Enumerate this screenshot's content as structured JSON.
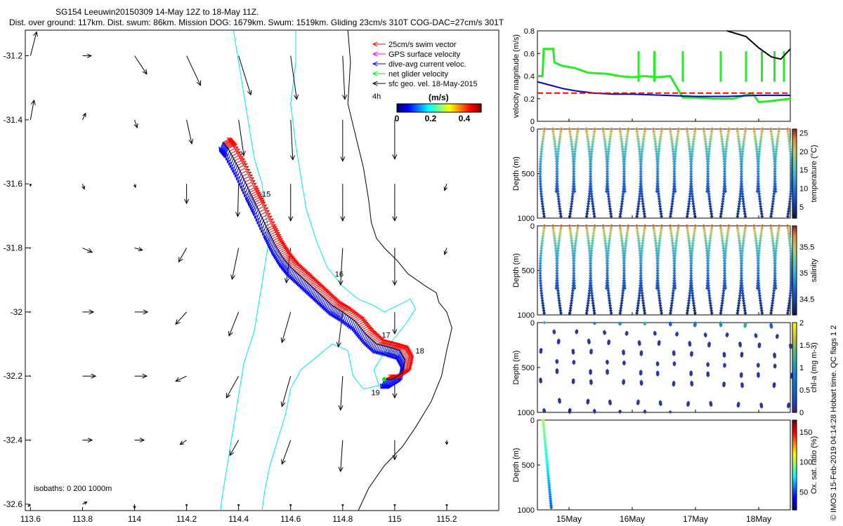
{
  "title_line1": "SG154 Leeuwin20150309 14-May 12Z to 18-May 11Z.",
  "title_line2": "Dist. over ground: 117km. Dist. swum: 86km. Mission DOG: 1679km. Swum: 1519km. Gliding 23cm/s 310T COG-DAC=27cm/s 301T",
  "copyright": "© IMOS 15-Feb-2019 04:14:28 Hobart time. QC flags 1  2",
  "colors": {
    "swim": "#ff0000",
    "gps": "#ff00ff",
    "dac": "#0000ff",
    "net": "#00ee00",
    "geo": "#000000",
    "isobath": "#00e5ee",
    "coast": "#000000",
    "dive_mag": "#0000cc",
    "ref_line": "#ff0000",
    "green_mag": "#22ee22"
  },
  "chart_data": [
    {
      "type": "map",
      "title": "Glider track with velocity vectors",
      "xlim": [
        113.58,
        115.4
      ],
      "ylim": [
        -32.62,
        -31.12
      ],
      "xticks": [
        "113.6",
        "113.8",
        "114",
        "114.2",
        "114.4",
        "114.6",
        "114.8",
        "115",
        "115.2"
      ],
      "yticks": [
        "-31.2",
        "-31.4",
        "-31.6",
        "-31.8",
        "-32",
        "-32.2",
        "-32.4",
        "-32.6"
      ],
      "legend": [
        {
          "label": "25cm/s swim vector",
          "color": "#ff0000"
        },
        {
          "label": "GPS surface velocity",
          "color": "#ff00ff"
        },
        {
          "label": "dive-avg current veloc.",
          "color": "#0000ff"
        },
        {
          "label": "net glider velocity",
          "color": "#00ee00"
        },
        {
          "label": "sfc geo. vel. 18-May-2015",
          "color": "#000000"
        }
      ],
      "scale_label": "4h",
      "colorbar": {
        "title": "(m/s)",
        "ticks": [
          "0",
          "0.2",
          "0.4"
        ],
        "range": [
          0,
          0.5
        ]
      },
      "day_labels": [
        {
          "day": "15",
          "lon": 114.49,
          "lat": -31.64
        },
        {
          "day": "16",
          "lon": 114.77,
          "lat": -31.89
        },
        {
          "day": "17",
          "lon": 114.95,
          "lat": -32.08
        },
        {
          "day": "18",
          "lon": 115.08,
          "lat": -32.13
        },
        {
          "day": "19",
          "lon": 114.91,
          "lat": -32.26
        }
      ],
      "isobath_note": "isobaths: 0   200  1000m",
      "track": [
        [
          114.34,
          -31.47
        ],
        [
          114.36,
          -31.49
        ],
        [
          114.4,
          -31.55
        ],
        [
          114.44,
          -31.62
        ],
        [
          114.47,
          -31.67
        ],
        [
          114.51,
          -31.74
        ],
        [
          114.54,
          -31.79
        ],
        [
          114.57,
          -31.83
        ],
        [
          114.6,
          -31.86
        ],
        [
          114.64,
          -31.89
        ],
        [
          114.68,
          -31.92
        ],
        [
          114.72,
          -31.95
        ],
        [
          114.76,
          -31.98
        ],
        [
          114.8,
          -32.0
        ],
        [
          114.85,
          -32.03
        ],
        [
          114.89,
          -32.07
        ],
        [
          114.93,
          -32.1
        ],
        [
          114.98,
          -32.11
        ],
        [
          115.02,
          -32.12
        ],
        [
          115.04,
          -32.15
        ],
        [
          115.03,
          -32.19
        ],
        [
          114.99,
          -32.21
        ],
        [
          114.96,
          -32.21
        ]
      ],
      "geo_vectors": [
        [
          113.6,
          -31.2,
          0.14,
          0.55
        ],
        [
          113.8,
          -31.2,
          0.2,
          0.0
        ],
        [
          114.0,
          -31.2,
          0.28,
          -0.42
        ],
        [
          114.2,
          -31.2,
          0.32,
          -0.68
        ],
        [
          114.4,
          -31.2,
          0.28,
          -0.9
        ],
        [
          114.6,
          -31.2,
          0.14,
          -1.0
        ],
        [
          114.8,
          -31.2,
          0.05,
          -1.0
        ],
        [
          113.6,
          -31.4,
          0.08,
          0.45
        ],
        [
          113.8,
          -31.4,
          0.07,
          0.15
        ],
        [
          114.0,
          -31.4,
          0.06,
          -0.18
        ],
        [
          114.2,
          -31.4,
          0.12,
          -0.55
        ],
        [
          114.4,
          -31.4,
          0.12,
          -0.82
        ],
        [
          114.6,
          -31.4,
          0.05,
          -0.92
        ],
        [
          114.8,
          -31.4,
          0.0,
          -0.95
        ],
        [
          115.0,
          -31.4,
          0.0,
          -0.9
        ],
        [
          113.6,
          -31.6,
          0.0,
          -0.05
        ],
        [
          113.8,
          -31.6,
          0.04,
          -0.12
        ],
        [
          114.0,
          -31.6,
          0.02,
          -0.08
        ],
        [
          114.2,
          -31.6,
          0.0,
          -0.45
        ],
        [
          114.4,
          -31.6,
          -0.02,
          -0.75
        ],
        [
          114.6,
          -31.6,
          0.0,
          -0.85
        ],
        [
          114.8,
          -31.6,
          0.0,
          -0.85
        ],
        [
          115.0,
          -31.6,
          0.0,
          -0.85
        ],
        [
          115.2,
          -31.6,
          -0.05,
          -0.15
        ],
        [
          113.6,
          -31.8,
          0.0,
          0.0
        ],
        [
          113.8,
          -31.8,
          0.22,
          -0.1
        ],
        [
          114.0,
          -31.8,
          0.18,
          -0.05
        ],
        [
          114.2,
          -31.8,
          -0.18,
          -0.32
        ],
        [
          114.4,
          -31.8,
          -0.15,
          -0.72
        ],
        [
          114.6,
          -31.8,
          -0.1,
          -0.8
        ],
        [
          114.8,
          -31.8,
          -0.05,
          -0.85
        ],
        [
          115.0,
          -31.8,
          0.0,
          -0.85
        ],
        [
          115.2,
          -31.8,
          -0.05,
          -0.15
        ],
        [
          113.6,
          -32.0,
          0.0,
          0.0
        ],
        [
          113.8,
          -32.0,
          0.25,
          0.0
        ],
        [
          114.0,
          -32.0,
          0.3,
          0.0
        ],
        [
          114.2,
          -32.0,
          -0.25,
          -0.28
        ],
        [
          114.4,
          -32.0,
          -0.22,
          -0.55
        ],
        [
          114.6,
          -32.0,
          -0.2,
          -0.7
        ],
        [
          114.8,
          -32.0,
          -0.1,
          -0.8
        ],
        [
          115.0,
          -32.0,
          0.0,
          -0.5
        ],
        [
          113.6,
          -32.2,
          0.0,
          0.0
        ],
        [
          113.8,
          -32.2,
          0.3,
          0.0
        ],
        [
          114.0,
          -32.2,
          0.28,
          0.0
        ],
        [
          114.2,
          -32.2,
          -0.25,
          -0.12
        ],
        [
          114.4,
          -32.2,
          -0.28,
          -0.5
        ],
        [
          114.6,
          -32.2,
          -0.2,
          -0.7
        ],
        [
          114.8,
          -32.2,
          -0.05,
          -0.78
        ],
        [
          115.0,
          -32.2,
          0.0,
          -0.5
        ],
        [
          113.6,
          -32.4,
          0.0,
          0.0
        ],
        [
          113.8,
          -32.4,
          0.22,
          0.0
        ],
        [
          114.0,
          -32.4,
          0.22,
          0.0
        ],
        [
          114.2,
          -32.4,
          -0.15,
          -0.1
        ],
        [
          114.4,
          -32.4,
          -0.2,
          -0.35
        ],
        [
          114.6,
          -32.4,
          -0.2,
          -0.55
        ],
        [
          114.8,
          -32.4,
          -0.05,
          -0.72
        ],
        [
          115.0,
          -32.4,
          0.0,
          -0.45
        ],
        [
          115.2,
          -32.4,
          0.0,
          -0.1
        ],
        [
          113.6,
          -32.6,
          -0.05,
          -0.05
        ],
        [
          113.8,
          -32.6,
          0.1,
          0.05
        ],
        [
          114.0,
          -32.6,
          0.0,
          -0.1
        ],
        [
          114.2,
          -32.6,
          0.0,
          -0.05
        ],
        [
          114.4,
          -32.6,
          0.0,
          -0.05
        ],
        [
          114.6,
          -32.6,
          0.0,
          -0.05
        ],
        [
          114.8,
          -32.6,
          0.0,
          -0.05
        ],
        [
          115.0,
          -32.6,
          0.0,
          -0.05
        ],
        [
          115.2,
          -32.6,
          0.0,
          -0.05
        ]
      ],
      "isobath_0": [
        [
          114.82,
          -31.12
        ],
        [
          114.83,
          -31.22
        ],
        [
          114.82,
          -31.35
        ],
        [
          114.85,
          -31.45
        ],
        [
          114.88,
          -31.55
        ],
        [
          114.9,
          -31.65
        ],
        [
          114.91,
          -31.72
        ],
        [
          114.93,
          -31.77
        ],
        [
          114.96,
          -31.8
        ],
        [
          115.01,
          -31.84
        ],
        [
          115.05,
          -31.88
        ],
        [
          115.12,
          -31.92
        ],
        [
          115.16,
          -31.94
        ],
        [
          115.17,
          -31.97
        ],
        [
          115.2,
          -32.0
        ],
        [
          115.22,
          -32.05
        ],
        [
          115.2,
          -32.12
        ],
        [
          115.18,
          -32.2
        ],
        [
          115.14,
          -32.28
        ],
        [
          115.08,
          -32.36
        ],
        [
          115.03,
          -32.42
        ],
        [
          114.96,
          -32.48
        ],
        [
          114.9,
          -32.55
        ],
        [
          114.86,
          -32.62
        ]
      ],
      "isobath_200": [
        [
          114.62,
          -31.12
        ],
        [
          114.62,
          -31.22
        ],
        [
          114.6,
          -31.35
        ],
        [
          114.62,
          -31.48
        ],
        [
          114.64,
          -31.58
        ],
        [
          114.66,
          -31.68
        ],
        [
          114.7,
          -31.78
        ],
        [
          114.74,
          -31.86
        ],
        [
          114.8,
          -31.92
        ],
        [
          114.86,
          -31.96
        ],
        [
          114.92,
          -31.98
        ],
        [
          114.96,
          -32.0
        ],
        [
          115.01,
          -31.98
        ],
        [
          115.06,
          -31.96
        ],
        [
          115.08,
          -31.99
        ],
        [
          115.04,
          -32.04
        ],
        [
          115.0,
          -32.08
        ],
        [
          114.95,
          -32.14
        ],
        [
          114.92,
          -32.18
        ],
        [
          114.94,
          -32.23
        ],
        [
          114.88,
          -32.24
        ],
        [
          114.84,
          -32.2
        ],
        [
          114.82,
          -32.12
        ],
        [
          114.76,
          -32.1
        ],
        [
          114.7,
          -32.14
        ],
        [
          114.64,
          -32.18
        ],
        [
          114.6,
          -32.24
        ],
        [
          114.58,
          -32.32
        ],
        [
          114.55,
          -32.4
        ],
        [
          114.52,
          -32.48
        ],
        [
          114.5,
          -32.56
        ],
        [
          114.49,
          -32.62
        ]
      ],
      "isobath_1000": [
        [
          114.38,
          -31.12
        ],
        [
          114.4,
          -31.22
        ],
        [
          114.42,
          -31.32
        ],
        [
          114.44,
          -31.42
        ],
        [
          114.46,
          -31.52
        ],
        [
          114.49,
          -31.6
        ],
        [
          114.5,
          -31.68
        ],
        [
          114.52,
          -31.76
        ],
        [
          114.5,
          -31.86
        ],
        [
          114.48,
          -31.96
        ],
        [
          114.46,
          -32.06
        ],
        [
          114.42,
          -32.16
        ],
        [
          114.4,
          -32.26
        ],
        [
          114.38,
          -32.36
        ],
        [
          114.36,
          -32.46
        ],
        [
          114.34,
          -32.56
        ],
        [
          114.33,
          -32.62
        ]
      ]
    },
    {
      "type": "line",
      "title": "",
      "ylabel": "velocity magnitude (m/s)",
      "ylim": [
        0,
        0.8
      ],
      "yticks": [
        "0",
        "0.2",
        "0.4",
        "0.6",
        "0.8"
      ],
      "xlim": [
        14.5,
        18.5
      ],
      "series": [
        {
          "name": "dive-avg current",
          "color": "#0000cc",
          "x": [
            14.5,
            14.7,
            14.9,
            15.1,
            15.4,
            15.7,
            16.0,
            16.5,
            17.0,
            17.5,
            18.0,
            18.5
          ],
          "values": [
            0.35,
            0.32,
            0.29,
            0.27,
            0.25,
            0.24,
            0.24,
            0.23,
            0.22,
            0.22,
            0.23,
            0.23
          ]
        },
        {
          "name": "25cm/s reference",
          "color": "#ff0000",
          "x": [
            14.5,
            18.5
          ],
          "values": [
            0.25,
            0.25
          ]
        },
        {
          "name": "sfc geo",
          "color": "#000000",
          "x": [
            17.5,
            17.8,
            18.0,
            18.2,
            18.35,
            18.5
          ],
          "values": [
            0.8,
            0.75,
            0.65,
            0.57,
            0.55,
            0.64
          ]
        },
        {
          "name": "net glider velocity",
          "color": "#22ee22",
          "x": [
            14.5,
            14.58,
            14.6,
            14.75,
            14.77,
            14.9,
            15.1,
            15.3,
            15.6,
            15.8,
            16.0,
            16.2,
            16.4,
            16.6,
            16.8,
            17.0,
            17.3,
            17.6,
            17.9,
            18.0,
            18.2,
            18.5
          ],
          "values": [
            0.4,
            0.4,
            0.64,
            0.64,
            0.52,
            0.49,
            0.47,
            0.43,
            0.42,
            0.4,
            0.39,
            0.4,
            0.39,
            0.4,
            0.21,
            0.21,
            0.2,
            0.2,
            0.25,
            0.17,
            0.18,
            0.2
          ]
        }
      ]
    },
    {
      "type": "scatter",
      "ylabel": "Depth (m)",
      "ylim": [
        1000,
        0
      ],
      "yticks": [
        "0",
        "500",
        "1000"
      ],
      "colorbar": {
        "label": "temperature (°C)",
        "ticks": [
          "5",
          "10",
          "15",
          "20",
          "25"
        ],
        "range": [
          2,
          26
        ]
      },
      "dives": 30,
      "surface_value": 24,
      "deep_value": 4
    },
    {
      "type": "scatter",
      "ylabel": "Depth (m)",
      "ylim": [
        1000,
        0
      ],
      "yticks": [
        "0",
        "500",
        "1000"
      ],
      "colorbar": {
        "label": "salinity",
        "ticks": [
          "34.5",
          "35",
          "35.5"
        ],
        "range": [
          34.2,
          35.9
        ]
      },
      "dives": 30,
      "surface_value": 35.8,
      "deep_value": 34.3
    },
    {
      "type": "scatter",
      "ylabel": "Depth (m)",
      "ylim": [
        1000,
        0
      ],
      "yticks": [
        "0",
        "500",
        "1000"
      ],
      "colorbar": {
        "label": "chl-a (mg m-3)",
        "ticks": [
          "0",
          "0.5",
          "1",
          "1.5",
          "2"
        ],
        "range": [
          0,
          2
        ]
      },
      "dives": 30,
      "surface_value": 1.2,
      "deep_value": 0.05
    },
    {
      "type": "scatter",
      "ylabel": "Depth (m)",
      "ylim": [
        1000,
        0
      ],
      "yticks": [
        "0",
        "500",
        "1000"
      ],
      "colorbar": {
        "label": "Ox. sat. ratio (%)",
        "ticks": [
          "50",
          "100",
          "150"
        ],
        "range": [
          20,
          170
        ]
      },
      "dives": 1,
      "surface_value": 100,
      "deep_value": 50
    }
  ],
  "time_axis": {
    "ticks": [
      "15May",
      "16May",
      "17May",
      "18May"
    ]
  }
}
